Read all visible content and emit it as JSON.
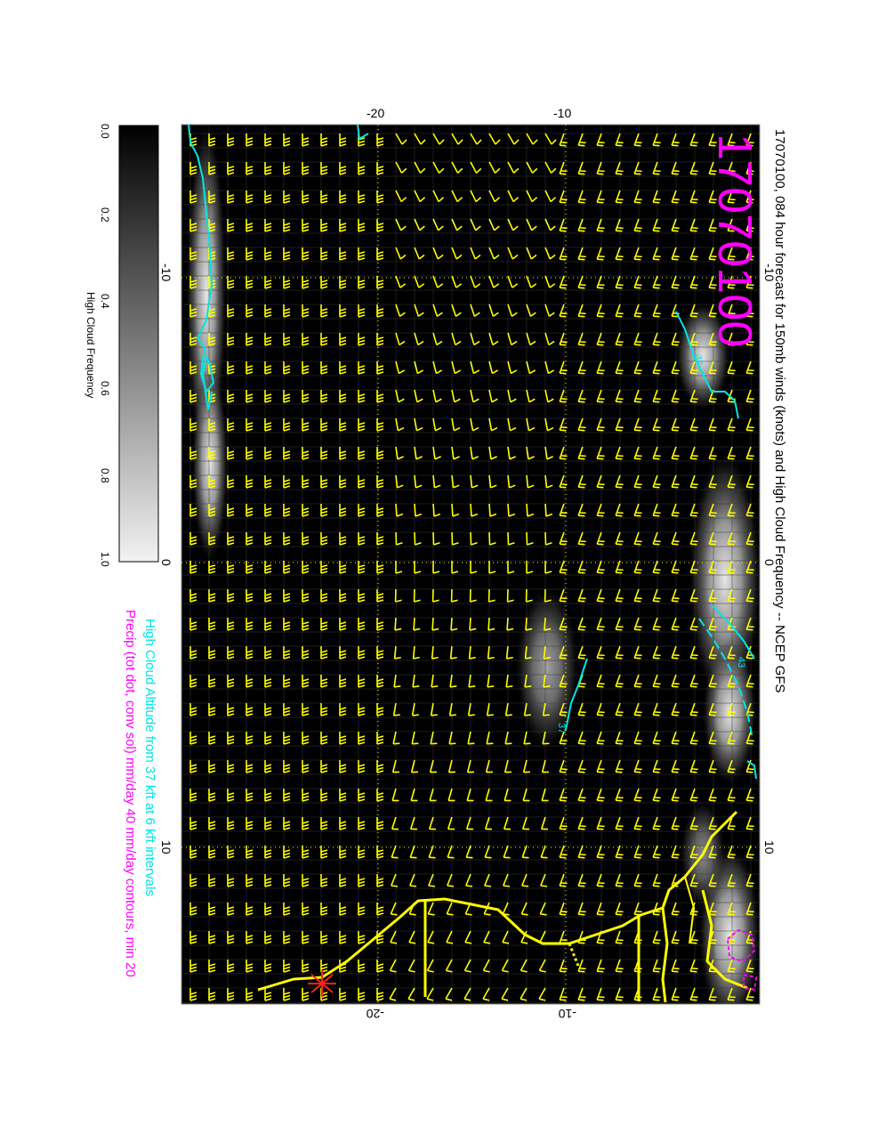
{
  "title": "17070100, 084 hour forecast for 150mb winds (knots) and High Cloud Frequency -- NCEP GFS",
  "stamp": "17070100",
  "legend_cloud_altitude": "High Cloud Altitude from 37 kft at 6 kft intervals",
  "legend_precip": "Precip (tot dot, conv sol) mm/day 40 mm/day contours, min 20",
  "colorbar": {
    "label": "High Cloud Frequency",
    "ticks": [
      "0.0",
      "0.2",
      "0.4",
      "0.6",
      "0.8",
      "1.0"
    ]
  },
  "axes": {
    "top_ticks": [
      "-20",
      "-10"
    ],
    "bottom_ticks": [
      "-20",
      "-10"
    ],
    "left_ticks": [
      "-10",
      "0",
      "10"
    ],
    "right_ticks": [
      "-10",
      "0",
      "10"
    ]
  },
  "contour_labels": [
    "37",
    "43",
    "43",
    "37"
  ],
  "colors": {
    "background": "#000000",
    "wind_barbs": "#ffff00",
    "coastline": "#ffff00",
    "cloud_contours": "#00e5e5",
    "precip_contours": "#ff00ff",
    "stamp": "#ff00ff",
    "cyan_text": "#00e5e5",
    "magenta_text": "#ff00ff"
  }
}
